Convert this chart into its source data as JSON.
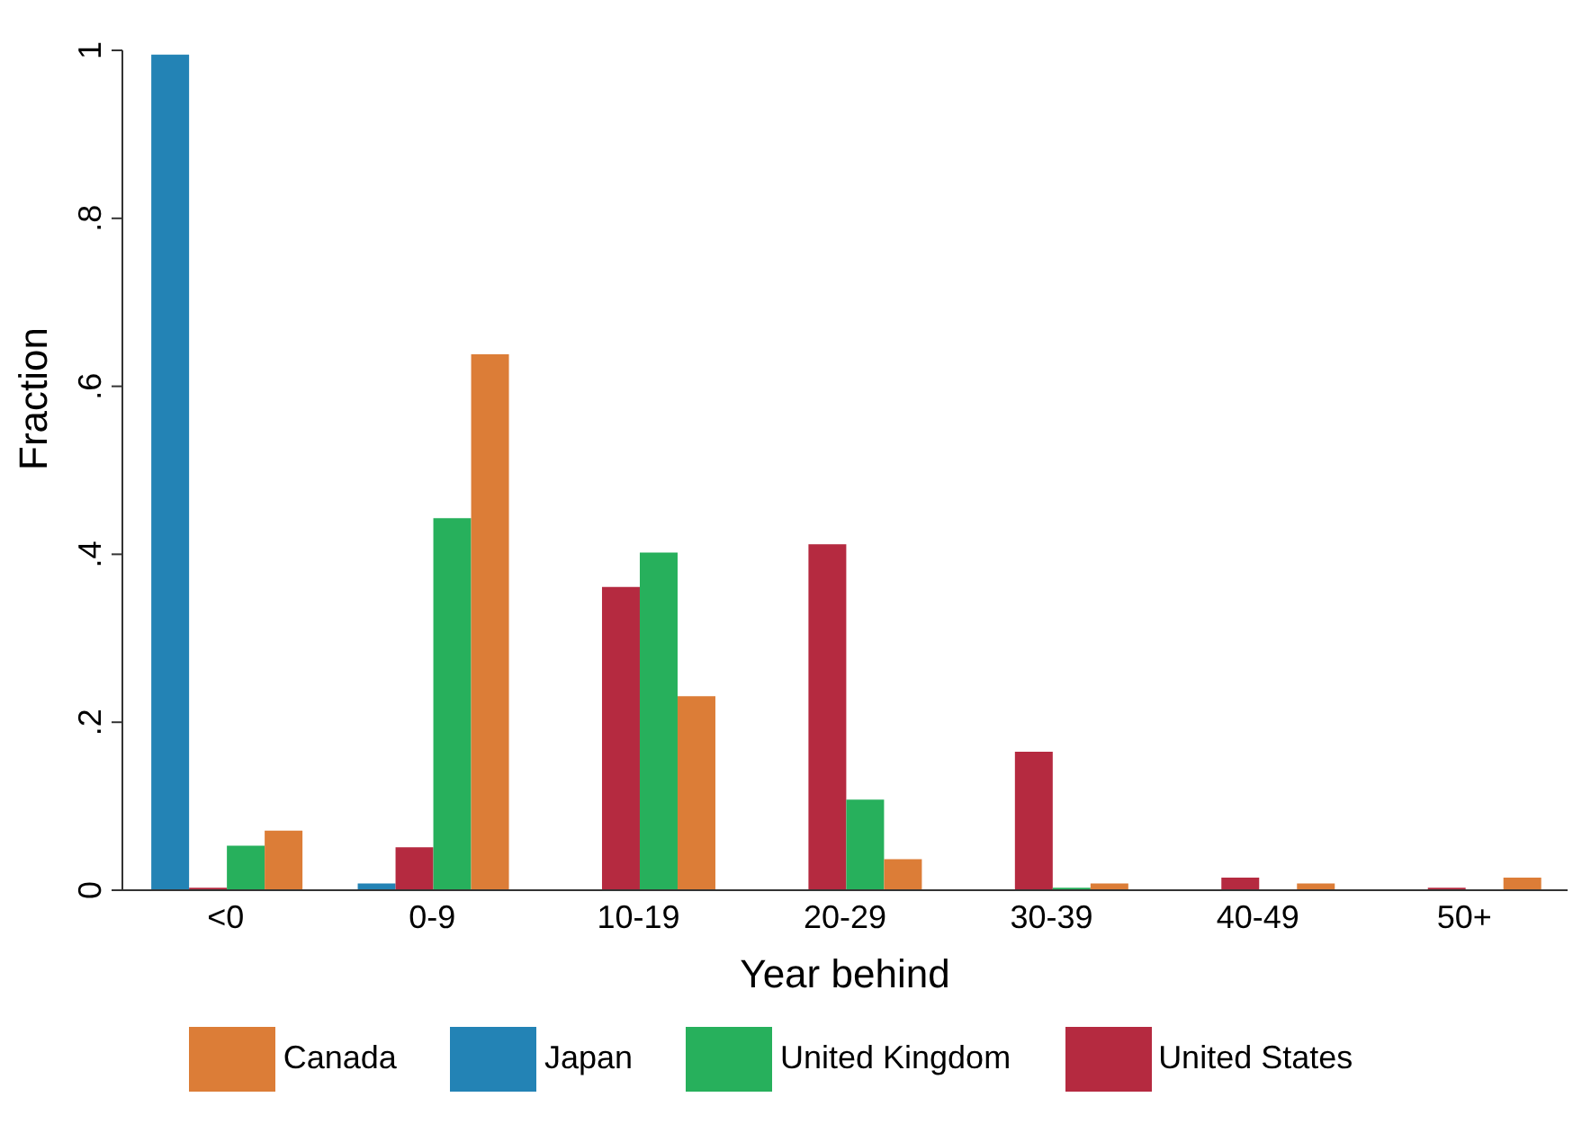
{
  "chart_data": {
    "type": "bar",
    "xlabel": "Year behind",
    "ylabel": "Fraction",
    "categories": [
      "<0",
      "0-9",
      "10-19",
      "20-29",
      "30-39",
      "40-49",
      "50+"
    ],
    "series": [
      {
        "name": "Japan",
        "color": "#2383b5",
        "values": [
          0.995,
          0.008,
          0,
          0,
          0,
          0,
          0
        ]
      },
      {
        "name": "United States",
        "color": "#b52a40",
        "values": [
          0.003,
          0.051,
          0.361,
          0.412,
          0.165,
          0.015,
          0.003
        ]
      },
      {
        "name": "United Kingdom",
        "color": "#27b05c",
        "values": [
          0.053,
          0.443,
          0.402,
          0.108,
          0.003,
          0,
          0
        ]
      },
      {
        "name": "Canada",
        "color": "#dc7d37",
        "values": [
          0.071,
          0.638,
          0.231,
          0.037,
          0.008,
          0.008,
          0.015
        ]
      }
    ],
    "ylim": [
      0,
      1
    ],
    "yticks": [
      0,
      {
        "value": 0.2,
        "label": ".2"
      },
      {
        "value": 0.4,
        "label": ".4"
      },
      {
        "value": 0.6,
        "label": ".6"
      },
      {
        "value": 0.8,
        "label": ".8"
      },
      1
    ],
    "grid": false,
    "legend": "bottom"
  }
}
